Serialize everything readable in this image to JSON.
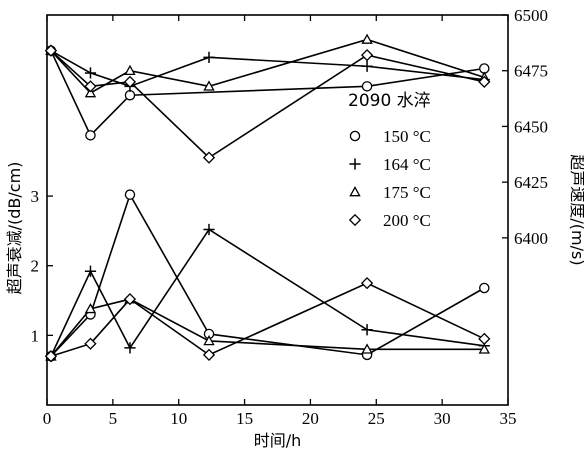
{
  "chart_data": {
    "type": "line",
    "xlabel": "时间/h",
    "ylabel_left": "超声衰减/(dB/cm)",
    "ylabel_right": "超声速度/(m/s)",
    "x_ticks": [
      "0",
      "5",
      "10",
      "15",
      "20",
      "25",
      "30",
      "35"
    ],
    "y_left_ticks": [
      "1",
      "2",
      "3"
    ],
    "y_right_ticks": [
      "6400",
      "6425",
      "6450",
      "6475",
      "6500"
    ],
    "xlim": [
      0,
      35
    ],
    "ylim_left": [
      0,
      5.6
    ],
    "ylim_right": [
      6325,
      6500
    ],
    "legend_title": "2090 水淬",
    "legend_position": "center-right",
    "series": [
      {
        "name": "150 °C",
        "marker": "circle",
        "attenuation": [
          [
            0.3,
            0.7
          ],
          [
            3.3,
            1.3
          ],
          [
            6.3,
            3.02
          ],
          [
            12.3,
            1.02
          ],
          [
            24.3,
            0.72
          ],
          [
            33.2,
            1.68
          ]
        ],
        "velocity": [
          [
            0.3,
            6484
          ],
          [
            3.3,
            6446
          ],
          [
            6.3,
            6464
          ],
          [
            24.3,
            6468
          ],
          [
            33.2,
            6476
          ]
        ]
      },
      {
        "name": "164 °C",
        "marker": "plus",
        "attenuation": [
          [
            0.3,
            0.7
          ],
          [
            3.3,
            1.92
          ],
          [
            6.3,
            0.82
          ],
          [
            12.3,
            2.52
          ],
          [
            24.3,
            1.08
          ],
          [
            33.2,
            0.85
          ]
        ],
        "velocity": [
          [
            0.3,
            6484
          ],
          [
            3.3,
            6474
          ],
          [
            6.3,
            6468
          ],
          [
            12.3,
            6481
          ],
          [
            24.3,
            6477
          ],
          [
            33.2,
            6471
          ]
        ]
      },
      {
        "name": "175 °C",
        "marker": "triangle",
        "attenuation": [
          [
            0.3,
            0.7
          ],
          [
            3.3,
            1.38
          ],
          [
            6.3,
            1.52
          ],
          [
            12.3,
            0.92
          ],
          [
            24.3,
            0.8
          ],
          [
            33.2,
            0.8
          ]
        ],
        "velocity": [
          [
            0.3,
            6484
          ],
          [
            3.3,
            6465
          ],
          [
            6.3,
            6475
          ],
          [
            12.3,
            6468
          ],
          [
            24.3,
            6489
          ],
          [
            33.2,
            6472
          ]
        ]
      },
      {
        "name": "200 °C",
        "marker": "diamond",
        "attenuation": [
          [
            0.3,
            0.7
          ],
          [
            3.3,
            0.88
          ],
          [
            6.3,
            1.52
          ],
          [
            12.3,
            0.72
          ],
          [
            24.3,
            1.75
          ],
          [
            33.2,
            0.95
          ]
        ],
        "velocity": [
          [
            0.3,
            6484
          ],
          [
            3.3,
            6468
          ],
          [
            6.3,
            6470
          ],
          [
            12.3,
            6436
          ],
          [
            24.3,
            6482
          ],
          [
            33.2,
            6470
          ]
        ]
      }
    ]
  }
}
